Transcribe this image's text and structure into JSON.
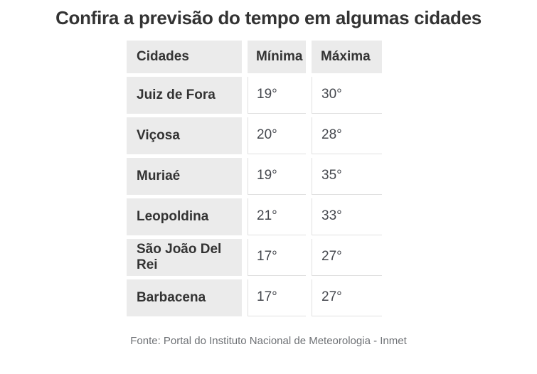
{
  "title": "Confira a previsão do tempo em algumas cidades",
  "table": {
    "headers": [
      "Cidades",
      "Mínima",
      "Máxima"
    ],
    "rows": [
      {
        "city": "Juiz de Fora",
        "min": "19°",
        "max": "30°"
      },
      {
        "city": "Viçosa",
        "min": "20°",
        "max": "28°"
      },
      {
        "city": "Muriaé",
        "min": "19°",
        "max": "35°"
      },
      {
        "city": "Leopoldina",
        "min": "21°",
        "max": "33°"
      },
      {
        "city": "São João Del Rei",
        "min": "17°",
        "max": "27°"
      },
      {
        "city": "Barbacena",
        "min": "17°",
        "max": "27°"
      }
    ]
  },
  "source": "Fonte: Portal do Instituto Nacional de Meteorologia - Inmet",
  "colors": {
    "title_text": "#333333",
    "cell_background": "#ebebeb",
    "cell_text": "#333333",
    "temp_text": "#45484e",
    "border": "#e0e0e0",
    "source_text": "#6e7175",
    "page_background": "#ffffff"
  }
}
